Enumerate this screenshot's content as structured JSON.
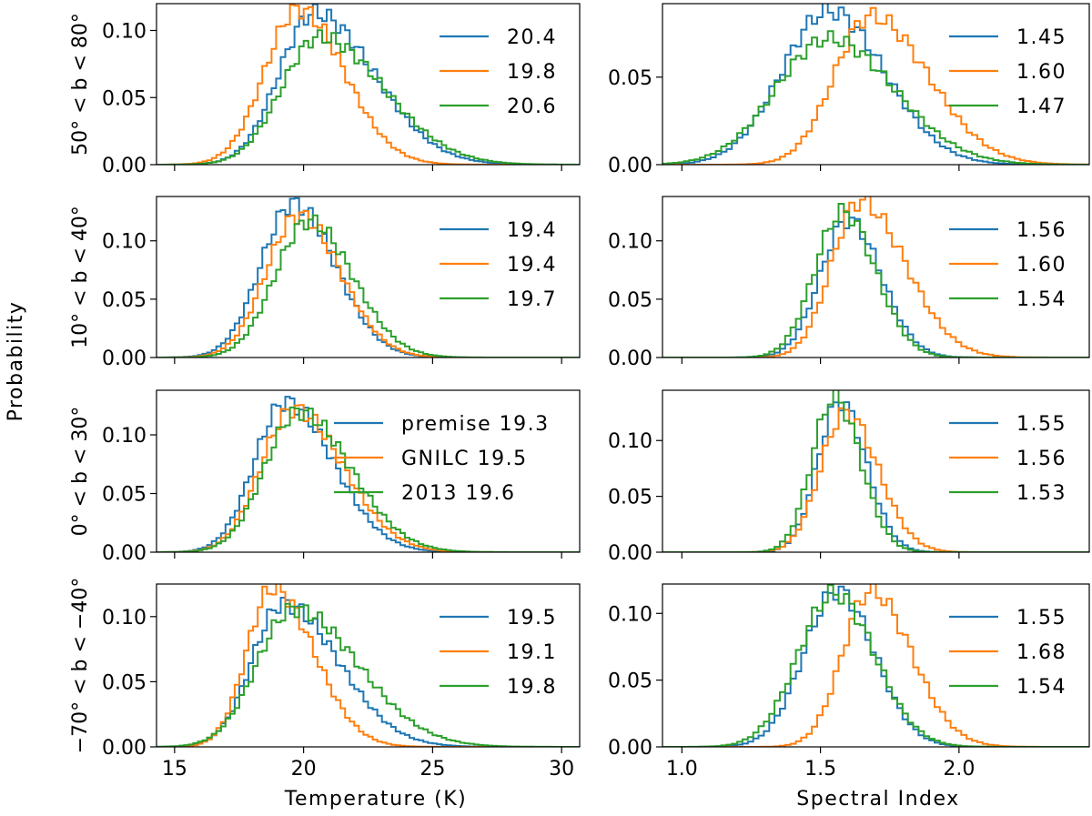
{
  "figure": {
    "ylabel": "Probability",
    "xlabel_left": "Temperature (K)",
    "xlabel_right": "Spectral Index",
    "row_labels": [
      "50° < b < 80°",
      "10° < b < 40°",
      "0° < b < 30°",
      "−70° < b < −40°"
    ],
    "series_names": [
      "premise",
      "GNILC",
      "2013"
    ],
    "colors": {
      "premise": "#1f77b4",
      "GNILC": "#ff7f0e",
      "2013": "#2ca02c"
    },
    "left_xticks": [
      "15",
      "20",
      "25",
      "30"
    ],
    "right_xticks": [
      "1.0",
      "1.5",
      "2.0"
    ]
  },
  "chart_data": [
    {
      "type": "histogram",
      "row": 0,
      "column": "temperature",
      "xlim": [
        14.3,
        30.7
      ],
      "ylim": [
        0,
        0.12
      ],
      "yticks": [
        0,
        0.05,
        0.1
      ],
      "ytick_labels": [
        "0.00",
        "0.05",
        "0.10"
      ],
      "series": [
        {
          "name": "premise",
          "peak": 20.4,
          "sd": 1.35,
          "height": 0.113,
          "skew": 1.2
        },
        {
          "name": "GNILC",
          "peak": 19.8,
          "sd": 1.3,
          "height": 0.116,
          "skew": 0.6
        },
        {
          "name": "2013",
          "peak": 20.6,
          "sd": 1.45,
          "height": 0.095,
          "skew": 1.2
        }
      ],
      "legend": [
        "20.4",
        "19.8",
        "20.6"
      ]
    },
    {
      "type": "histogram",
      "row": 0,
      "column": "spectral_index",
      "xlim": [
        0.93,
        2.47
      ],
      "ylim": [
        0,
        0.092
      ],
      "yticks": [
        0,
        0.05
      ],
      "ytick_labels": [
        "0.00",
        "0.05"
      ],
      "series": [
        {
          "name": "premise",
          "peak": 1.53,
          "sd": 0.17,
          "height": 0.088,
          "skew": 0.3
        },
        {
          "name": "GNILC",
          "peak": 1.68,
          "sd": 0.13,
          "height": 0.085,
          "skew": 1.0
        },
        {
          "name": "2013",
          "peak": 1.53,
          "sd": 0.19,
          "height": 0.072,
          "skew": 0.4
        }
      ],
      "legend": [
        "1.45",
        "1.60",
        "1.47"
      ]
    },
    {
      "type": "histogram",
      "row": 1,
      "column": "temperature",
      "xlim": [
        14.3,
        30.7
      ],
      "ylim": [
        0,
        0.138
      ],
      "yticks": [
        0,
        0.05,
        0.1
      ],
      "ytick_labels": [
        "0.00",
        "0.05",
        "0.10"
      ],
      "series": [
        {
          "name": "premise",
          "peak": 19.6,
          "sd": 1.25,
          "height": 0.132,
          "skew": 0.5
        },
        {
          "name": "GNILC",
          "peak": 19.8,
          "sd": 1.25,
          "height": 0.122,
          "skew": 0.5
        },
        {
          "name": "2013",
          "peak": 20.2,
          "sd": 1.3,
          "height": 0.117,
          "skew": 0.5
        }
      ],
      "legend": [
        "19.4",
        "19.4",
        "19.7"
      ]
    },
    {
      "type": "histogram",
      "row": 1,
      "column": "spectral_index",
      "xlim": [
        0.93,
        2.47
      ],
      "ylim": [
        0,
        0.138
      ],
      "yticks": [
        0,
        0.05,
        0.1
      ],
      "ytick_labels": [
        "0.00",
        "0.05",
        "0.10"
      ],
      "series": [
        {
          "name": "premise",
          "peak": 1.6,
          "sd": 0.1,
          "height": 0.118,
          "skew": 0.3
        },
        {
          "name": "GNILC",
          "peak": 1.64,
          "sd": 0.1,
          "height": 0.134,
          "skew": 1.1
        },
        {
          "name": "2013",
          "peak": 1.58,
          "sd": 0.1,
          "height": 0.125,
          "skew": 0.3
        }
      ],
      "legend": [
        "1.56",
        "1.60",
        "1.54"
      ]
    },
    {
      "type": "histogram",
      "row": 2,
      "column": "temperature",
      "xlim": [
        14.3,
        30.7
      ],
      "ylim": [
        0,
        0.138
      ],
      "yticks": [
        0,
        0.05,
        0.1
      ],
      "ytick_labels": [
        "0.00",
        "0.05",
        "0.10"
      ],
      "series": [
        {
          "name": "premise",
          "peak": 19.3,
          "sd": 1.2,
          "height": 0.128,
          "skew": 0.9
        },
        {
          "name": "GNILC",
          "peak": 19.6,
          "sd": 1.25,
          "height": 0.122,
          "skew": 0.9
        },
        {
          "name": "2013",
          "peak": 19.8,
          "sd": 1.3,
          "height": 0.12,
          "skew": 0.9
        }
      ],
      "legend": [
        "premise 19.3",
        "GNILC 19.5",
        "2013 19.6"
      ]
    },
    {
      "type": "histogram",
      "row": 2,
      "column": "spectral_index",
      "xlim": [
        0.93,
        2.47
      ],
      "ylim": [
        0,
        0.145
      ],
      "yticks": [
        0,
        0.05,
        0.1
      ],
      "ytick_labels": [
        "0.00",
        "0.05",
        "0.10"
      ],
      "series": [
        {
          "name": "premise",
          "peak": 1.57,
          "sd": 0.08,
          "height": 0.135,
          "skew": 0.3
        },
        {
          "name": "GNILC",
          "peak": 1.59,
          "sd": 0.09,
          "height": 0.125,
          "skew": 0.5
        },
        {
          "name": "2013",
          "peak": 1.55,
          "sd": 0.08,
          "height": 0.139,
          "skew": 0.3
        }
      ],
      "legend": [
        "1.55",
        "1.56",
        "1.53"
      ]
    },
    {
      "type": "histogram",
      "row": 3,
      "column": "temperature",
      "xlim": [
        14.3,
        30.7
      ],
      "ylim": [
        0,
        0.125
      ],
      "yticks": [
        0,
        0.05,
        0.1
      ],
      "ytick_labels": [
        "0.00",
        "0.05",
        "0.10"
      ],
      "series": [
        {
          "name": "premise",
          "peak": 19.2,
          "sd": 1.2,
          "height": 0.11,
          "skew": 1.3
        },
        {
          "name": "GNILC",
          "peak": 18.8,
          "sd": 1.0,
          "height": 0.122,
          "skew": 1.0
        },
        {
          "name": "2013",
          "peak": 19.6,
          "sd": 1.4,
          "height": 0.106,
          "skew": 1.3
        }
      ],
      "legend": [
        "19.5",
        "19.1",
        "19.8"
      ]
    },
    {
      "type": "histogram",
      "row": 3,
      "column": "spectral_index",
      "xlim": [
        0.93,
        2.47
      ],
      "ylim": [
        0,
        0.122
      ],
      "yticks": [
        0,
        0.05,
        0.1
      ],
      "ytick_labels": [
        "0.00",
        "0.05",
        "0.10"
      ],
      "series": [
        {
          "name": "premise",
          "peak": 1.56,
          "sd": 0.12,
          "height": 0.117,
          "skew": 0.2
        },
        {
          "name": "GNILC",
          "peak": 1.68,
          "sd": 0.1,
          "height": 0.117,
          "skew": 0.8
        },
        {
          "name": "2013",
          "peak": 1.55,
          "sd": 0.13,
          "height": 0.115,
          "skew": 0.2
        }
      ],
      "legend": [
        "1.55",
        "1.68",
        "1.54"
      ]
    }
  ]
}
